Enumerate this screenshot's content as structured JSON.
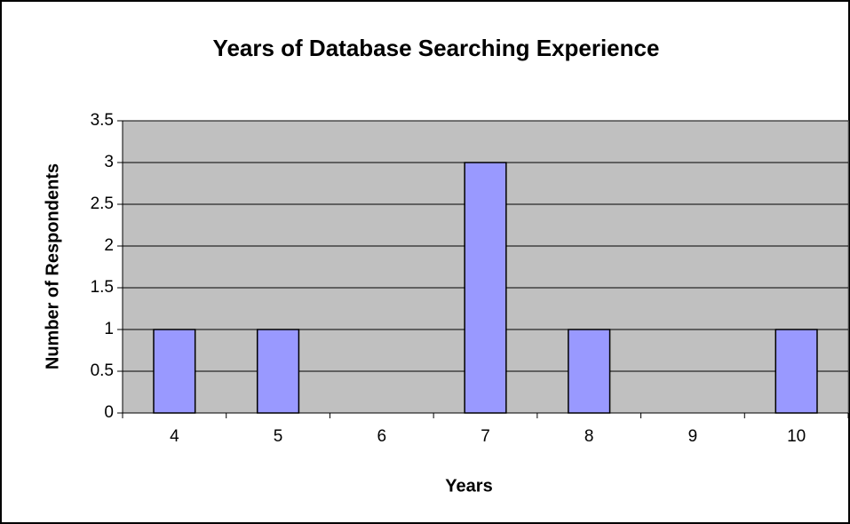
{
  "chart_data": {
    "type": "bar",
    "title": "Years of Database Searching Experience",
    "x_label": "Years",
    "y_label": "Number of Respondents",
    "categories": [
      "4",
      "5",
      "6",
      "7",
      "8",
      "9",
      "10"
    ],
    "values": [
      1,
      1,
      0,
      3,
      1,
      0,
      1
    ],
    "color": "#9999ff",
    "ylim": [
      0,
      3.5
    ],
    "yticks": [
      0,
      0.5,
      1,
      1.5,
      2,
      2.5,
      3,
      3.5
    ],
    "grid": true
  }
}
